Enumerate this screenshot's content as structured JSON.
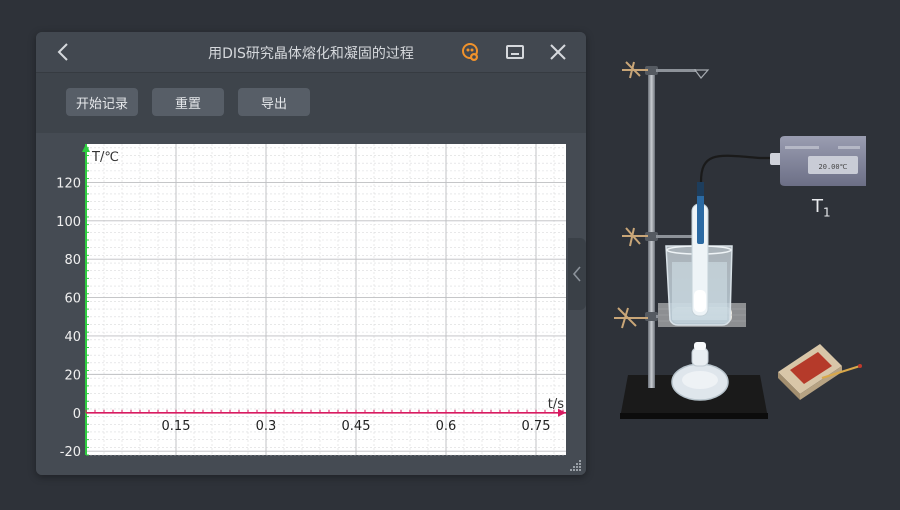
{
  "window": {
    "title": "用DIS研究晶体熔化和凝固的过程",
    "icons": [
      "back-arrow-icon",
      "settings-badge-icon",
      "minimize-icon",
      "close-icon"
    ]
  },
  "toolbar": {
    "start_label": "开始记录",
    "reset_label": "重置",
    "export_label": "导出"
  },
  "chart_data": {
    "type": "line",
    "ylabel": "T/℃",
    "xlabel": "t/s",
    "x_ticks": [
      "0.15",
      "0.3",
      "0.45",
      "0.6",
      "0.75"
    ],
    "x_tick_values": [
      0.15,
      0.3,
      0.45,
      0.6,
      0.75
    ],
    "y_ticks": [
      "120",
      "100",
      "80",
      "60",
      "40",
      "20",
      "0",
      "-20"
    ],
    "y_tick_values": [
      120,
      100,
      80,
      60,
      40,
      20,
      0,
      -20
    ],
    "xlim": [
      0,
      0.8
    ],
    "ylim": [
      -22,
      140
    ],
    "grid": true,
    "series": []
  },
  "apparatus": {
    "sensor_label": "T",
    "sensor_subscript": "1",
    "sensor_display": "20.00℃",
    "colors": {
      "stand": "#8a8f96",
      "base": "#141414",
      "sensor_body": "#7c7f95",
      "matchbox": "#c9b79a",
      "axis_y": "#2ecc40",
      "axis_x": "#d81b60"
    }
  }
}
